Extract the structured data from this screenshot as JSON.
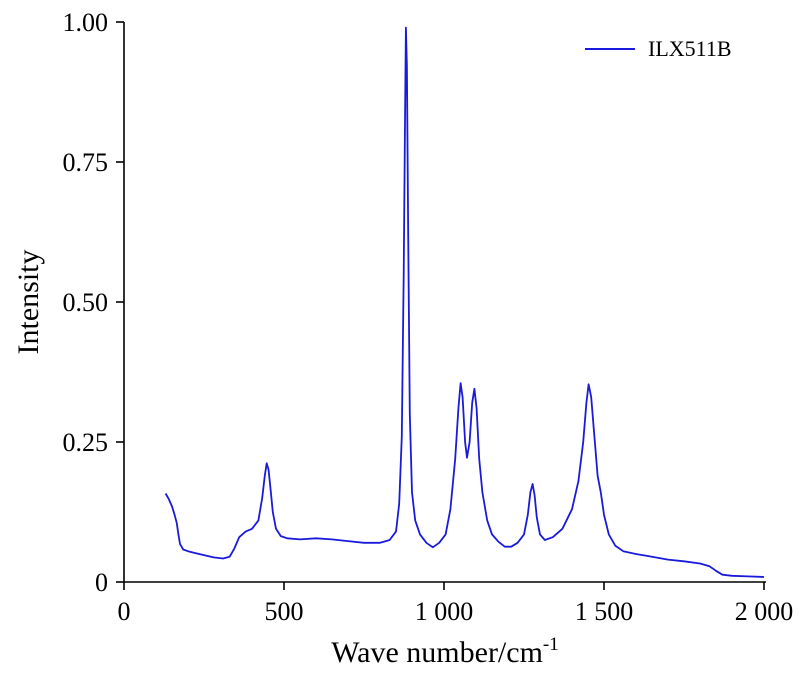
{
  "chart_data": {
    "type": "line",
    "xlabel": "Wave number/cm",
    "xlabel_superscript": "-1",
    "ylabel": "Intensity",
    "xlim": [
      0,
      2000
    ],
    "ylim": [
      0,
      1
    ],
    "x_ticks": [
      {
        "value": 0,
        "label": "0"
      },
      {
        "value": 500,
        "label": "500"
      },
      {
        "value": 1000,
        "label": "1 000"
      },
      {
        "value": 1500,
        "label": "1 500"
      },
      {
        "value": 2000,
        "label": "2 000"
      }
    ],
    "y_ticks": [
      {
        "value": 0,
        "label": "0"
      },
      {
        "value": 0.25,
        "label": "0.25"
      },
      {
        "value": 0.5,
        "label": "0.50"
      },
      {
        "value": 0.75,
        "label": "0.75"
      },
      {
        "value": 1.0,
        "label": "1.00"
      }
    ],
    "grid": false,
    "legend_position": "top-right",
    "series": [
      {
        "name": "ILX511B",
        "color": "#1a1adc",
        "points": [
          [
            130,
            0.158
          ],
          [
            140,
            0.148
          ],
          [
            150,
            0.135
          ],
          [
            158,
            0.12
          ],
          [
            165,
            0.105
          ],
          [
            170,
            0.085
          ],
          [
            175,
            0.068
          ],
          [
            185,
            0.058
          ],
          [
            200,
            0.055
          ],
          [
            220,
            0.052
          ],
          [
            250,
            0.048
          ],
          [
            280,
            0.044
          ],
          [
            310,
            0.042
          ],
          [
            330,
            0.045
          ],
          [
            345,
            0.06
          ],
          [
            360,
            0.08
          ],
          [
            380,
            0.09
          ],
          [
            400,
            0.095
          ],
          [
            420,
            0.11
          ],
          [
            432,
            0.15
          ],
          [
            440,
            0.19
          ],
          [
            446,
            0.212
          ],
          [
            452,
            0.2
          ],
          [
            458,
            0.165
          ],
          [
            465,
            0.125
          ],
          [
            475,
            0.095
          ],
          [
            490,
            0.082
          ],
          [
            510,
            0.078
          ],
          [
            550,
            0.076
          ],
          [
            600,
            0.078
          ],
          [
            650,
            0.076
          ],
          [
            700,
            0.073
          ],
          [
            750,
            0.07
          ],
          [
            800,
            0.07
          ],
          [
            830,
            0.075
          ],
          [
            850,
            0.09
          ],
          [
            860,
            0.14
          ],
          [
            868,
            0.26
          ],
          [
            874,
            0.55
          ],
          [
            878,
            0.82
          ],
          [
            881,
            0.99
          ],
          [
            884,
            0.92
          ],
          [
            888,
            0.62
          ],
          [
            893,
            0.3
          ],
          [
            900,
            0.16
          ],
          [
            910,
            0.11
          ],
          [
            925,
            0.085
          ],
          [
            945,
            0.07
          ],
          [
            965,
            0.062
          ],
          [
            985,
            0.07
          ],
          [
            1005,
            0.085
          ],
          [
            1020,
            0.13
          ],
          [
            1035,
            0.22
          ],
          [
            1045,
            0.31
          ],
          [
            1052,
            0.355
          ],
          [
            1058,
            0.33
          ],
          [
            1066,
            0.25
          ],
          [
            1072,
            0.222
          ],
          [
            1080,
            0.25
          ],
          [
            1088,
            0.32
          ],
          [
            1095,
            0.345
          ],
          [
            1102,
            0.31
          ],
          [
            1110,
            0.22
          ],
          [
            1120,
            0.16
          ],
          [
            1135,
            0.11
          ],
          [
            1150,
            0.085
          ],
          [
            1170,
            0.072
          ],
          [
            1190,
            0.063
          ],
          [
            1210,
            0.063
          ],
          [
            1230,
            0.07
          ],
          [
            1250,
            0.085
          ],
          [
            1262,
            0.12
          ],
          [
            1270,
            0.16
          ],
          [
            1277,
            0.175
          ],
          [
            1283,
            0.155
          ],
          [
            1290,
            0.115
          ],
          [
            1300,
            0.085
          ],
          [
            1315,
            0.075
          ],
          [
            1340,
            0.08
          ],
          [
            1370,
            0.095
          ],
          [
            1400,
            0.13
          ],
          [
            1420,
            0.18
          ],
          [
            1435,
            0.25
          ],
          [
            1445,
            0.32
          ],
          [
            1452,
            0.353
          ],
          [
            1460,
            0.33
          ],
          [
            1470,
            0.26
          ],
          [
            1480,
            0.19
          ],
          [
            1490,
            0.16
          ],
          [
            1500,
            0.12
          ],
          [
            1515,
            0.085
          ],
          [
            1535,
            0.065
          ],
          [
            1560,
            0.055
          ],
          [
            1600,
            0.05
          ],
          [
            1650,
            0.045
          ],
          [
            1700,
            0.04
          ],
          [
            1750,
            0.037
          ],
          [
            1800,
            0.033
          ],
          [
            1830,
            0.028
          ],
          [
            1850,
            0.02
          ],
          [
            1870,
            0.013
          ],
          [
            1900,
            0.011
          ],
          [
            1950,
            0.01
          ],
          [
            2000,
            0.009
          ]
        ]
      }
    ]
  }
}
